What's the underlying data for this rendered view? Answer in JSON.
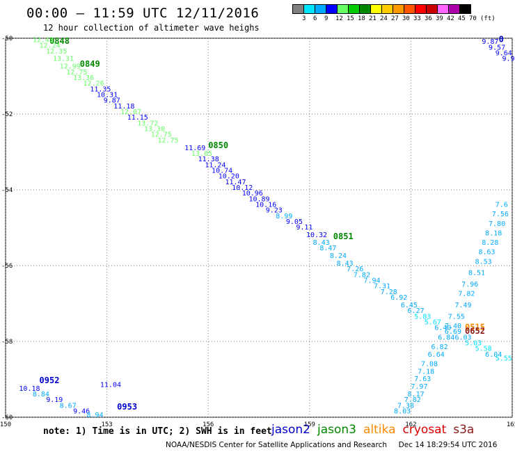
{
  "header": {
    "title": "00:00 — 11:59 UTC 12/11/2016",
    "subtitle": "12 hour collection of altimeter wave heighs"
  },
  "scale": {
    "labels": [
      "3",
      "6",
      "9",
      "12",
      "15",
      "18",
      "21",
      "24",
      "27",
      "30",
      "33",
      "36",
      "39",
      "42",
      "45",
      "70",
      "(ft)"
    ],
    "colors": [
      "#808080",
      "#00e5ff",
      "#00aaff",
      "#0000ff",
      "#66ff66",
      "#00cc00",
      "#008800",
      "#ffff00",
      "#ffcc00",
      "#ff9900",
      "#ff5500",
      "#ff0000",
      "#cc0000",
      "#ff66ff",
      "#aa00aa",
      "#000000"
    ]
  },
  "note": "note: 1) Time is in UTC; 2) SWH is in feet",
  "legend": [
    {
      "label": "jason2",
      "color": "#0000cc"
    },
    {
      "label": "jason3",
      "color": "#008800"
    },
    {
      "label": "altika",
      "color": "#ff8800"
    },
    {
      "label": "cryosat",
      "color": "#dd0000"
    },
    {
      "label": "s3a",
      "color": "#8b1a1a"
    }
  ],
  "footer": "NOAA/NESDIS Center for Satellite Applications and Research     Dec 14 18:29:54 UTC 2016",
  "chart_data": {
    "type": "scatter",
    "x_ticks": [
      "150",
      "153",
      "156",
      "159",
      "162",
      "165"
    ],
    "y_ticks": [
      "-50",
      "-52",
      "-54",
      "-56",
      "-58",
      "-60"
    ],
    "xlim": [
      150,
      165
    ],
    "ylim": [
      -60,
      -50
    ],
    "grid": true,
    "series": [
      {
        "name": "jason3",
        "color": "#008800",
        "points": [
          {
            "x": 151.3,
            "y": -50.15,
            "label": "0848"
          },
          {
            "x": 152.2,
            "y": -50.75,
            "label": "0849"
          },
          {
            "x": 156.0,
            "y": -52.9,
            "label": "0850"
          },
          {
            "x": 159.7,
            "y": -55.3,
            "label": "0851"
          }
        ]
      },
      {
        "name": "jason2",
        "color": "#0000cc",
        "points": [
          {
            "x": 151.0,
            "y": -59.1,
            "label": "0952"
          },
          {
            "x": 153.3,
            "y": -59.8,
            "label": "0953"
          },
          {
            "x": 164.6,
            "y": -50.1,
            "label": "0"
          }
        ]
      },
      {
        "name": "altika",
        "color": "#ff8800",
        "points": [
          {
            "x": 163.6,
            "y": -57.7,
            "label": "0515"
          }
        ]
      },
      {
        "name": "s3a",
        "color": "#8b1a1a",
        "points": [
          {
            "x": 163.6,
            "y": -57.8,
            "label": "0652"
          }
        ]
      },
      {
        "name": "swh_jason3_0848",
        "points": [
          {
            "x": 150.8,
            "y": -50.1,
            "v": "12.43",
            "c": "#66ff66"
          },
          {
            "x": 151.0,
            "y": -50.25,
            "v": "12.24",
            "c": "#66ff66"
          },
          {
            "x": 151.2,
            "y": -50.4,
            "v": "12.35",
            "c": "#66ff66"
          },
          {
            "x": 151.4,
            "y": -50.6,
            "v": "13.31",
            "c": "#66ff66"
          },
          {
            "x": 151.6,
            "y": -50.8,
            "v": "12.99",
            "c": "#66ff66"
          },
          {
            "x": 151.8,
            "y": -50.95,
            "v": "12.75",
            "c": "#66ff66"
          },
          {
            "x": 152.0,
            "y": -51.1,
            "v": "13.36",
            "c": "#66ff66"
          },
          {
            "x": 152.3,
            "y": -51.25,
            "v": "12.26",
            "c": "#66ff66"
          }
        ]
      },
      {
        "name": "swh_jason2_0849",
        "points": [
          {
            "x": 152.5,
            "y": -51.4,
            "v": "11.35",
            "c": "#0000ff"
          },
          {
            "x": 152.7,
            "y": -51.55,
            "v": "10.31",
            "c": "#0000ff"
          },
          {
            "x": 152.9,
            "y": -51.7,
            "v": "9.87",
            "c": "#0000ff"
          },
          {
            "x": 153.2,
            "y": -51.85,
            "v": "11.18",
            "c": "#0000ff"
          },
          {
            "x": 153.4,
            "y": -52.0,
            "v": "12.07",
            "c": "#66ff66"
          },
          {
            "x": 153.6,
            "y": -52.15,
            "v": "11.15",
            "c": "#0000ff"
          },
          {
            "x": 153.9,
            "y": -52.3,
            "v": "13.72",
            "c": "#66ff66"
          },
          {
            "x": 154.1,
            "y": -52.45,
            "v": "13.30",
            "c": "#66ff66"
          },
          {
            "x": 154.3,
            "y": -52.6,
            "v": "12.75",
            "c": "#66ff66"
          },
          {
            "x": 154.5,
            "y": -52.75,
            "v": "12.75",
            "c": "#66ff66"
          }
        ]
      },
      {
        "name": "swh_0850",
        "points": [
          {
            "x": 155.3,
            "y": -52.95,
            "v": "11.69",
            "c": "#0000ff"
          },
          {
            "x": 155.5,
            "y": -53.1,
            "v": "13.05",
            "c": "#66ff66"
          },
          {
            "x": 155.7,
            "y": -53.25,
            "v": "11.38",
            "c": "#0000ff"
          },
          {
            "x": 155.9,
            "y": -53.4,
            "v": "11.24",
            "c": "#0000ff"
          },
          {
            "x": 156.1,
            "y": -53.55,
            "v": "10.74",
            "c": "#0000ff"
          },
          {
            "x": 156.3,
            "y": -53.7,
            "v": "10.20",
            "c": "#0000ff"
          },
          {
            "x": 156.5,
            "y": -53.85,
            "v": "11.47",
            "c": "#0000ff"
          },
          {
            "x": 156.7,
            "y": -54.0,
            "v": "10.12",
            "c": "#0000ff"
          },
          {
            "x": 157.0,
            "y": -54.15,
            "v": "10.96",
            "c": "#0000ff"
          },
          {
            "x": 157.2,
            "y": -54.3,
            "v": "10.89",
            "c": "#0000ff"
          },
          {
            "x": 157.4,
            "y": -54.45,
            "v": "10.16",
            "c": "#0000ff"
          },
          {
            "x": 157.7,
            "y": -54.6,
            "v": "9.23",
            "c": "#0000ff"
          },
          {
            "x": 158.0,
            "y": -54.75,
            "v": "8.99",
            "c": "#00aaff"
          },
          {
            "x": 158.3,
            "y": -54.9,
            "v": "9.05",
            "c": "#0000ff"
          },
          {
            "x": 158.6,
            "y": -55.05,
            "v": "9.11",
            "c": "#0000ff"
          },
          {
            "x": 158.9,
            "y": -55.25,
            "v": "10.32",
            "c": "#0000ff"
          }
        ]
      },
      {
        "name": "swh_0851",
        "points": [
          {
            "x": 159.1,
            "y": -55.45,
            "v": "8.43",
            "c": "#00aaff"
          },
          {
            "x": 159.3,
            "y": -55.6,
            "v": "8.47",
            "c": "#00aaff"
          },
          {
            "x": 159.6,
            "y": -55.8,
            "v": "8.24",
            "c": "#00aaff"
          },
          {
            "x": 159.8,
            "y": -56.0,
            "v": "8.43",
            "c": "#00aaff"
          },
          {
            "x": 160.1,
            "y": -56.15,
            "v": "7.26",
            "c": "#00aaff"
          },
          {
            "x": 160.3,
            "y": -56.3,
            "v": "7.82",
            "c": "#00aaff"
          },
          {
            "x": 160.6,
            "y": -56.45,
            "v": "7.94",
            "c": "#00aaff"
          },
          {
            "x": 160.9,
            "y": -56.6,
            "v": "7.31",
            "c": "#00aaff"
          },
          {
            "x": 161.1,
            "y": -56.75,
            "v": "7.28",
            "c": "#00aaff"
          },
          {
            "x": 161.4,
            "y": -56.9,
            "v": "6.92",
            "c": "#00aaff"
          },
          {
            "x": 161.7,
            "y": -57.1,
            "v": "6.45",
            "c": "#00aaff"
          },
          {
            "x": 161.9,
            "y": -57.25,
            "v": "6.27",
            "c": "#00aaff"
          },
          {
            "x": 162.1,
            "y": -57.4,
            "v": "5.83",
            "c": "#00e5ff"
          },
          {
            "x": 162.4,
            "y": -57.55,
            "v": "5.67",
            "c": "#00e5ff"
          },
          {
            "x": 162.7,
            "y": -57.7,
            "v": "6.40",
            "c": "#00aaff"
          },
          {
            "x": 163.0,
            "y": -57.8,
            "v": "6.69",
            "c": "#00aaff"
          },
          {
            "x": 163.3,
            "y": -57.95,
            "v": "6.03",
            "c": "#00aaff"
          },
          {
            "x": 163.6,
            "y": -58.1,
            "v": "5.03",
            "c": "#00e5ff"
          },
          {
            "x": 163.9,
            "y": -58.25,
            "v": "5.58",
            "c": "#00e5ff"
          },
          {
            "x": 164.2,
            "y": -58.4,
            "v": "6.04",
            "c": "#00aaff"
          },
          {
            "x": 164.5,
            "y": -58.5,
            "v": "5.55",
            "c": "#00e5ff"
          }
        ]
      },
      {
        "name": "swh_0952",
        "points": [
          {
            "x": 150.4,
            "y": -59.3,
            "v": "10.18",
            "c": "#0000ff"
          },
          {
            "x": 150.8,
            "y": -59.45,
            "v": "8.84",
            "c": "#00aaff"
          },
          {
            "x": 151.2,
            "y": -59.6,
            "v": "9.19",
            "c": "#0000ff"
          },
          {
            "x": 151.6,
            "y": -59.75,
            "v": "8.67",
            "c": "#00aaff"
          },
          {
            "x": 152.0,
            "y": -59.9,
            "v": "9.46",
            "c": "#0000ff"
          },
          {
            "x": 152.4,
            "y": -60.0,
            "v": "8.94",
            "c": "#00aaff"
          },
          {
            "x": 152.8,
            "y": -59.2,
            "v": "11.04",
            "c": "#0000ff"
          }
        ]
      },
      {
        "name": "swh_ascending",
        "points": [
          {
            "x": 161.5,
            "y": -59.9,
            "v": "8.03",
            "c": "#00aaff"
          },
          {
            "x": 161.6,
            "y": -59.75,
            "v": "7.38",
            "c": "#00aaff"
          },
          {
            "x": 161.8,
            "y": -59.6,
            "v": "7.82",
            "c": "#00aaff"
          },
          {
            "x": 161.9,
            "y": -59.45,
            "v": "8.17",
            "c": "#00aaff"
          },
          {
            "x": 162.0,
            "y": -59.25,
            "v": "7.97",
            "c": "#00aaff"
          },
          {
            "x": 162.1,
            "y": -59.05,
            "v": "7.63",
            "c": "#00aaff"
          },
          {
            "x": 162.2,
            "y": -58.85,
            "v": "7.18",
            "c": "#00aaff"
          },
          {
            "x": 162.3,
            "y": -58.65,
            "v": "7.08",
            "c": "#00aaff"
          },
          {
            "x": 162.5,
            "y": -58.4,
            "v": "6.64",
            "c": "#00aaff"
          },
          {
            "x": 162.6,
            "y": -58.2,
            "v": "6.82",
            "c": "#00aaff"
          },
          {
            "x": 162.8,
            "y": -57.95,
            "v": "6.84",
            "c": "#00aaff"
          },
          {
            "x": 163.0,
            "y": -57.65,
            "v": "7.40",
            "c": "#00aaff"
          },
          {
            "x": 163.1,
            "y": -57.4,
            "v": "7.55",
            "c": "#00aaff"
          },
          {
            "x": 163.3,
            "y": -57.1,
            "v": "7.49",
            "c": "#00aaff"
          },
          {
            "x": 163.4,
            "y": -56.8,
            "v": "7.82",
            "c": "#00aaff"
          },
          {
            "x": 163.5,
            "y": -56.55,
            "v": "7.96",
            "c": "#00aaff"
          },
          {
            "x": 163.7,
            "y": -56.25,
            "v": "8.51",
            "c": "#00aaff"
          },
          {
            "x": 163.9,
            "y": -55.95,
            "v": "8.53",
            "c": "#00aaff"
          },
          {
            "x": 164.0,
            "y": -55.7,
            "v": "8.63",
            "c": "#00aaff"
          },
          {
            "x": 164.1,
            "y": -55.45,
            "v": "8.28",
            "c": "#00aaff"
          },
          {
            "x": 164.2,
            "y": -55.2,
            "v": "8.18",
            "c": "#00aaff"
          },
          {
            "x": 164.3,
            "y": -54.95,
            "v": "7.80",
            "c": "#00aaff"
          },
          {
            "x": 164.4,
            "y": -54.7,
            "v": "7.56",
            "c": "#00aaff"
          },
          {
            "x": 164.5,
            "y": -54.45,
            "v": "7.6",
            "c": "#00aaff"
          }
        ]
      },
      {
        "name": "swh_topright",
        "points": [
          {
            "x": 164.1,
            "y": -50.15,
            "v": "9.87",
            "c": "#0000ff"
          },
          {
            "x": 164.3,
            "y": -50.3,
            "v": "9.57",
            "c": "#0000ff"
          },
          {
            "x": 164.5,
            "y": -50.45,
            "v": "9.64",
            "c": "#0000ff"
          },
          {
            "x": 164.7,
            "y": -50.6,
            "v": "9.9",
            "c": "#0000ff"
          }
        ]
      }
    ]
  }
}
